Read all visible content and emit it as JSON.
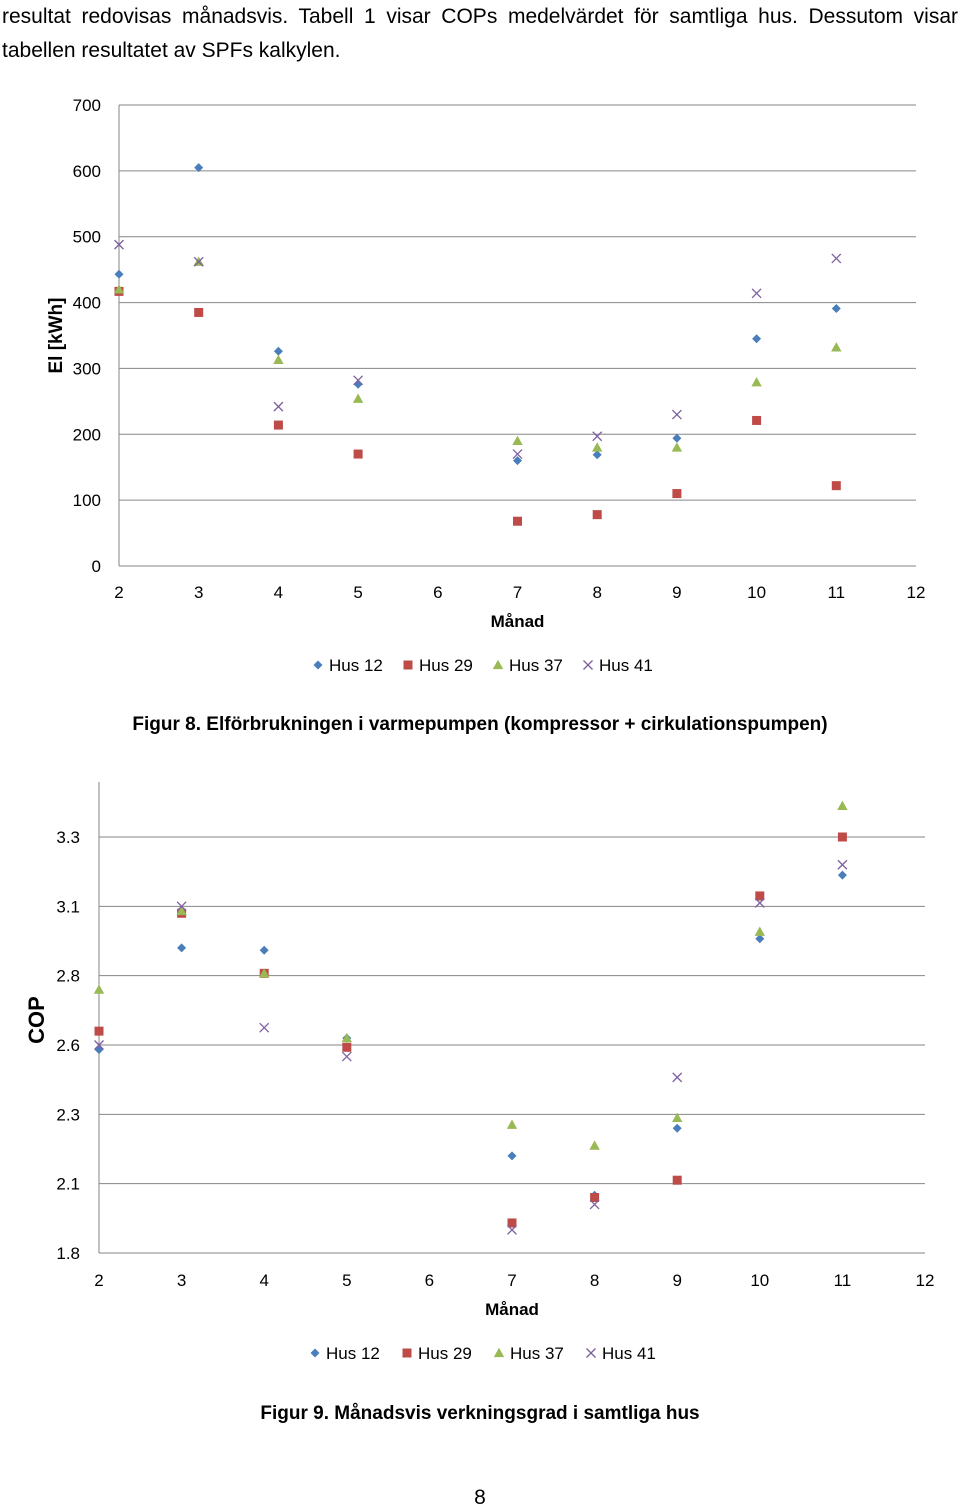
{
  "intro_text": "resultat redovisas månadsvis. Tabell 1 visar COPs medelvärdet för samtliga hus. Dessutom visar tabellen resultatet av SPFs kalkylen.",
  "colors": {
    "Hus 12": "#4a7ebb",
    "Hus 29": "#be4b48",
    "Hus 37": "#98b954",
    "Hus 41": "#7d60a0",
    "grid": "#868686"
  },
  "chart_data": [
    {
      "type": "scatter",
      "xlabel": "Månad",
      "ylabel": "El [kWh]",
      "xlim": [
        2,
        12
      ],
      "ylim": [
        0,
        700
      ],
      "x_ticks": [
        "2",
        "3",
        "4",
        "5",
        "6",
        "7",
        "8",
        "9",
        "10",
        "11",
        "12"
      ],
      "y_ticks": [
        "0",
        "100",
        "200",
        "300",
        "400",
        "500",
        "600",
        "700"
      ],
      "grid": true,
      "legend_position": "bottom",
      "series": [
        {
          "name": "Hus 12",
          "marker": "diamond",
          "x": [
            2,
            3,
            4,
            5,
            7,
            8,
            9,
            10,
            11
          ],
          "y": [
            443,
            605,
            326,
            276,
            160,
            169,
            194,
            345,
            391
          ]
        },
        {
          "name": "Hus 29",
          "marker": "square",
          "x": [
            2,
            3,
            4,
            5,
            7,
            8,
            9,
            10,
            11
          ],
          "y": [
            417,
            385,
            214,
            170,
            68,
            78,
            110,
            221,
            122
          ]
        },
        {
          "name": "Hus 37",
          "marker": "triangle",
          "x": [
            2,
            3,
            4,
            5,
            7,
            8,
            9,
            10,
            11
          ],
          "y": [
            420,
            462,
            313,
            254,
            190,
            180,
            180,
            279,
            332
          ]
        },
        {
          "name": "Hus 41",
          "marker": "x",
          "x": [
            2,
            3,
            4,
            5,
            7,
            8,
            9,
            10,
            11
          ],
          "y": [
            488,
            462,
            242,
            282,
            170,
            197,
            230,
            414,
            467
          ]
        }
      ]
    },
    {
      "type": "scatter",
      "xlabel": "Månad",
      "ylabel": "COP",
      "xlim": [
        2,
        12
      ],
      "ylim": [
        1.8,
        3.5
      ],
      "x_ticks": [
        "2",
        "3",
        "4",
        "5",
        "6",
        "7",
        "8",
        "9",
        "10",
        "11",
        "12"
      ],
      "y_ticks": [
        "1.8",
        "2.1",
        "2.3",
        "2.6",
        "2.8",
        "3.1",
        "3.3"
      ],
      "grid": true,
      "legend_position": "bottom",
      "series": [
        {
          "name": "Hus 12",
          "marker": "diamond",
          "x": [
            2,
            3,
            4,
            5,
            7,
            8,
            9,
            10,
            11
          ],
          "y": [
            2.58,
            2.92,
            2.91,
            2.62,
            2.18,
            2.05,
            2.26,
            2.96,
            3.19
          ]
        },
        {
          "name": "Hus 29",
          "marker": "square",
          "x": [
            2,
            3,
            4,
            5,
            7,
            8,
            9,
            10,
            11
          ],
          "y": [
            2.64,
            3.07,
            2.81,
            2.59,
            1.93,
            2.04,
            2.11,
            3.13,
            3.3
          ]
        },
        {
          "name": "Hus 37",
          "marker": "triangle",
          "x": [
            2,
            3,
            4,
            5,
            7,
            8,
            9,
            10,
            11
          ],
          "y": [
            2.76,
            3.08,
            2.81,
            2.62,
            2.27,
            2.21,
            2.29,
            2.99,
            3.39
          ]
        },
        {
          "name": "Hus 41",
          "marker": "x",
          "x": [
            2,
            3,
            4,
            5,
            7,
            8,
            9,
            10,
            11
          ],
          "y": [
            2.6,
            3.1,
            2.65,
            2.55,
            1.9,
            2.01,
            2.46,
            3.11,
            3.22
          ]
        }
      ]
    }
  ],
  "captions": {
    "fig8": "Figur 8. Elförbrukningen i varmepumpen (kompressor + cirkulationspumpen)",
    "fig9": "Figur 9. Månadsvis verkningsgrad i samtliga hus"
  },
  "page_number": "8"
}
